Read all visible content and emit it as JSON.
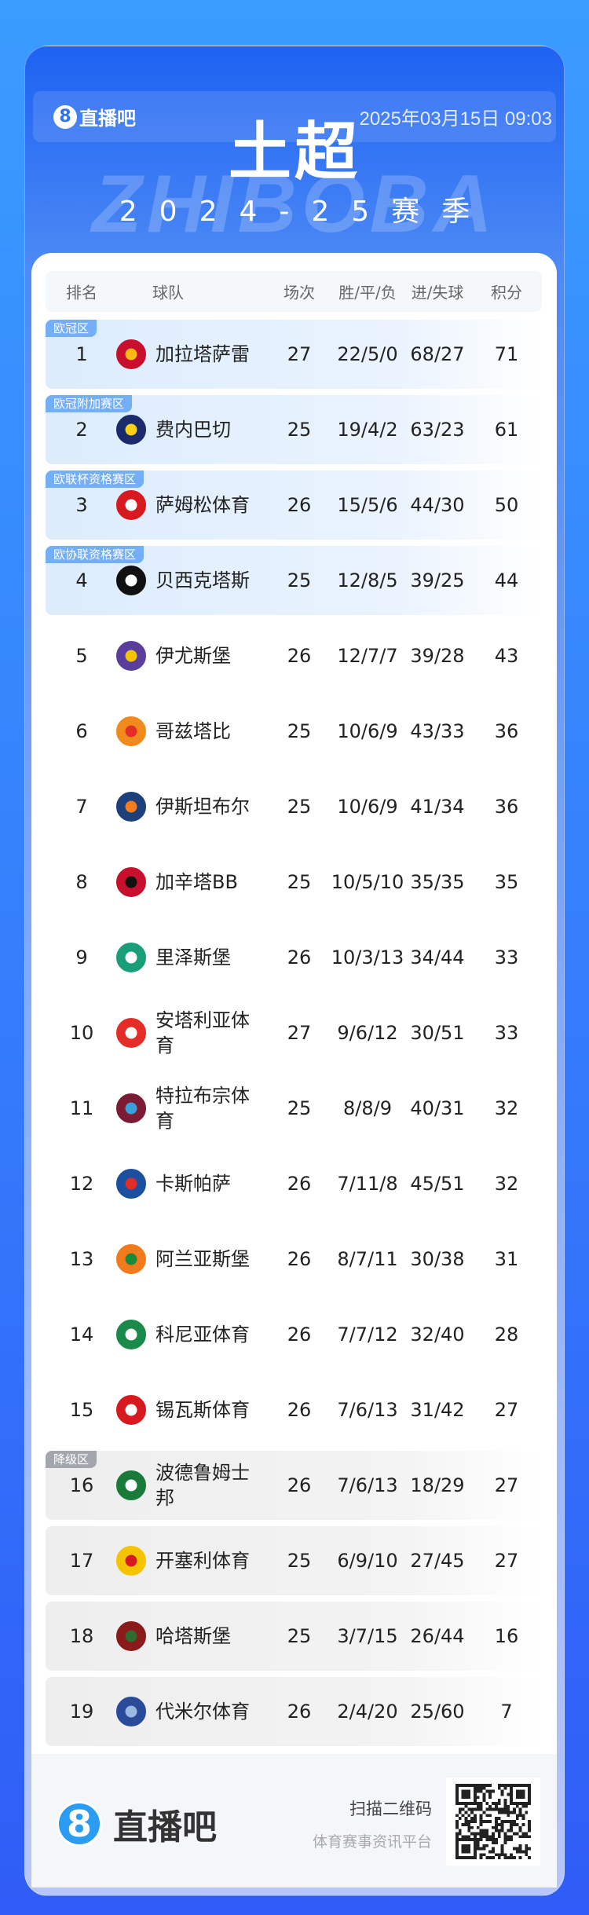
{
  "header": {
    "brand": "直播吧",
    "brand_mark": "8",
    "datetime": "2025年03月15日 09:03",
    "title": "土超",
    "season": "2024-25赛季",
    "watermark": "ZHIBOBA"
  },
  "table": {
    "columns": [
      "排名",
      "球队",
      "场次",
      "胜/平/负",
      "进/失球",
      "积分"
    ],
    "rows": [
      {
        "rank": "1",
        "team": "加拉塔萨雷",
        "played": "27",
        "wdl": "22/5/0",
        "goals": "68/27",
        "points": "71",
        "zone": "欧冠区",
        "zone_style": "blue",
        "logo_color": "#c8102e",
        "logo_color2": "#fdb913"
      },
      {
        "rank": "2",
        "team": "费内巴切",
        "played": "25",
        "wdl": "19/4/2",
        "goals": "63/23",
        "points": "61",
        "zone": "欧冠附加赛区",
        "zone_style": "blue",
        "logo_color": "#1b2a6b",
        "logo_color2": "#f7d117"
      },
      {
        "rank": "3",
        "team": "萨姆松体育",
        "played": "26",
        "wdl": "15/5/6",
        "goals": "44/30",
        "points": "50",
        "zone": "欧联杯资格赛区",
        "zone_style": "blue",
        "logo_color": "#d71920",
        "logo_color2": "#ffffff"
      },
      {
        "rank": "4",
        "team": "贝西克塔斯",
        "played": "25",
        "wdl": "12/8/5",
        "goals": "39/25",
        "points": "44",
        "zone": "欧协联资格赛区",
        "zone_style": "blue",
        "logo_color": "#111111",
        "logo_color2": "#ffffff"
      },
      {
        "rank": "5",
        "team": "伊尤斯堡",
        "played": "26",
        "wdl": "12/7/7",
        "goals": "39/28",
        "points": "43",
        "zone": "",
        "zone_style": "none",
        "logo_color": "#5a3e9e",
        "logo_color2": "#f5c400"
      },
      {
        "rank": "6",
        "team": "哥兹塔比",
        "played": "25",
        "wdl": "10/6/9",
        "goals": "43/33",
        "points": "36",
        "zone": "",
        "zone_style": "none",
        "logo_color": "#f08a1c",
        "logo_color2": "#e52d27"
      },
      {
        "rank": "7",
        "team": "伊斯坦布尔",
        "played": "25",
        "wdl": "10/6/9",
        "goals": "41/34",
        "points": "36",
        "zone": "",
        "zone_style": "none",
        "logo_color": "#1d3f7a",
        "logo_color2": "#f47b20"
      },
      {
        "rank": "8",
        "team": "加辛塔BB",
        "played": "25",
        "wdl": "10/5/10",
        "goals": "35/35",
        "points": "35",
        "zone": "",
        "zone_style": "none",
        "logo_color": "#c8102e",
        "logo_color2": "#111111"
      },
      {
        "rank": "9",
        "team": "里泽斯堡",
        "played": "26",
        "wdl": "10/3/13",
        "goals": "34/44",
        "points": "33",
        "zone": "",
        "zone_style": "none",
        "logo_color": "#1a9e7a",
        "logo_color2": "#ffffff"
      },
      {
        "rank": "10",
        "team": "安塔利亚体育",
        "played": "27",
        "wdl": "9/6/12",
        "goals": "30/51",
        "points": "33",
        "zone": "",
        "zone_style": "none",
        "logo_color": "#e52d27",
        "logo_color2": "#ffffff"
      },
      {
        "rank": "11",
        "team": "特拉布宗体育",
        "played": "25",
        "wdl": "8/8/9",
        "goals": "40/31",
        "points": "32",
        "zone": "",
        "zone_style": "none",
        "logo_color": "#7b1c34",
        "logo_color2": "#3aa0dc"
      },
      {
        "rank": "12",
        "team": "卡斯帕萨",
        "played": "26",
        "wdl": "7/11/8",
        "goals": "45/51",
        "points": "32",
        "zone": "",
        "zone_style": "none",
        "logo_color": "#1b4fa0",
        "logo_color2": "#e52d27"
      },
      {
        "rank": "13",
        "team": "阿兰亚斯堡",
        "played": "26",
        "wdl": "8/7/11",
        "goals": "30/38",
        "points": "31",
        "zone": "",
        "zone_style": "none",
        "logo_color": "#f07a1c",
        "logo_color2": "#1a8a3a"
      },
      {
        "rank": "14",
        "team": "科尼亚体育",
        "played": "26",
        "wdl": "7/7/12",
        "goals": "32/40",
        "points": "28",
        "zone": "",
        "zone_style": "none",
        "logo_color": "#1a8a4a",
        "logo_color2": "#ffffff"
      },
      {
        "rank": "15",
        "team": "锡瓦斯体育",
        "played": "26",
        "wdl": "7/6/13",
        "goals": "31/42",
        "points": "27",
        "zone": "",
        "zone_style": "none",
        "logo_color": "#d71920",
        "logo_color2": "#ffffff"
      },
      {
        "rank": "16",
        "team": "波德鲁姆士邦",
        "played": "26",
        "wdl": "7/6/13",
        "goals": "18/29",
        "points": "27",
        "zone": "降级区",
        "zone_style": "grey",
        "logo_color": "#1a7a3a",
        "logo_color2": "#ffffff"
      },
      {
        "rank": "17",
        "team": "开塞利体育",
        "played": "25",
        "wdl": "6/9/10",
        "goals": "27/45",
        "points": "27",
        "zone": "",
        "zone_style": "grey",
        "logo_color": "#f5c400",
        "logo_color2": "#d71920"
      },
      {
        "rank": "18",
        "team": "哈塔斯堡",
        "played": "25",
        "wdl": "3/7/15",
        "goals": "26/44",
        "points": "16",
        "zone": "",
        "zone_style": "grey",
        "logo_color": "#8b1a1a",
        "logo_color2": "#2e6b2e"
      },
      {
        "rank": "19",
        "team": "代米尔体育",
        "played": "26",
        "wdl": "2/4/20",
        "goals": "25/60",
        "points": "7",
        "zone": "",
        "zone_style": "grey",
        "logo_color": "#2a4a9a",
        "logo_color2": "#9ab8e0"
      }
    ]
  },
  "footer": {
    "brand": "直播吧",
    "brand_mark": "8",
    "scan_label": "扫描二维码",
    "slogan": "体育赛事资讯平台"
  },
  "colors": {
    "primary": "#2f72f5",
    "zone_blue": "#74aef5",
    "zone_grey": "#a3a7ad"
  }
}
